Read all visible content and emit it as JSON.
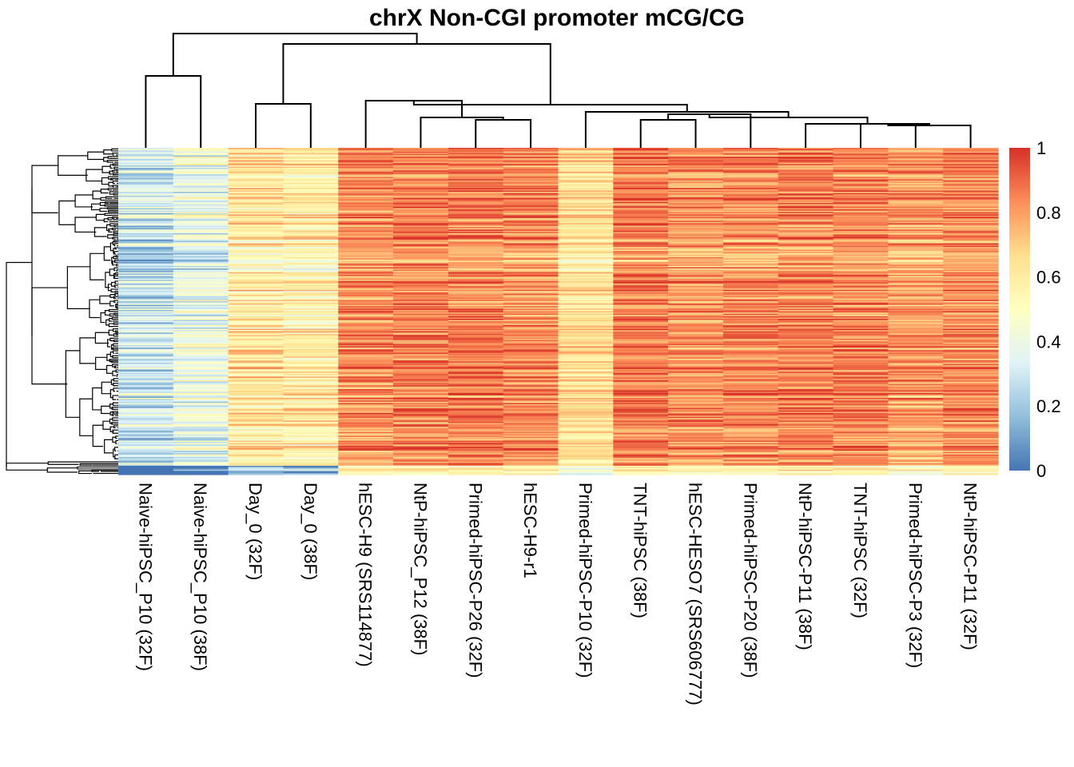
{
  "chart_data": {
    "type": "heatmap",
    "title": "chrX Non-CGI promoter mCG/CG",
    "columns": [
      "Naive-hiPSC_P10 (32F)",
      "Naive-hiPSC_P10 (38F)",
      "Day_0 (32F)",
      "Day_0 (38F)",
      "hESC-H9 (SRS114877)",
      "NtP-hiPSC_P12 (38F)",
      "Primed-hiPSC-P26 (32F)",
      "hESC-H9-r1",
      "Primed-hiPSC-P10 (32F)",
      "TNT-hiPSC (38F)",
      "hESC-HESO7 (SRS606777)",
      "Primed-hiPSC-P20 (38F)",
      "NtP-hiPSC-P11 (38F)",
      "TNT-hiPSC (32F)",
      "Primed-hiPSC-P3 (32F)",
      "NtP-hiPSC-P11 (32F)"
    ],
    "column_mean_values": [
      0.3,
      0.4,
      0.62,
      0.6,
      0.82,
      0.85,
      0.86,
      0.84,
      0.66,
      0.86,
      0.82,
      0.84,
      0.85,
      0.85,
      0.8,
      0.84
    ],
    "row_count": 1200,
    "value_range": [
      0,
      1
    ],
    "colorbar": {
      "ticks": [
        "0",
        "0.2",
        "0.4",
        "0.6",
        "0.8",
        "1"
      ],
      "colors": [
        "#4575b4",
        "#91bfdb",
        "#e0f3f8",
        "#ffffbf",
        "#fee090",
        "#fc8d59",
        "#d73027"
      ]
    },
    "row_dendrogram": true,
    "column_dendrogram": true,
    "legend_position": "right"
  }
}
